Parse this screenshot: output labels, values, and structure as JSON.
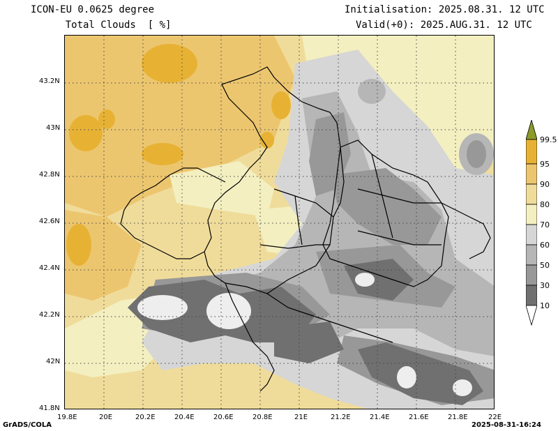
{
  "header": {
    "model_line": "ICON-EU 0.0625 degree",
    "variable_line": "    Total Clouds  [ %]",
    "init_line": "Initialisation: 2025.08.31. 12 UTC",
    "valid_line": "Valid(+0): 2025.AUG.31. 12 UTC"
  },
  "axes": {
    "y_labels": [
      "43.2N",
      "43N",
      "42.8N",
      "42.6N",
      "42.4N",
      "42.2N",
      "42N",
      "41.8N"
    ],
    "x_labels": [
      "19.8E",
      "20E",
      "20.2E",
      "20.4E",
      "20.6E",
      "20.8E",
      "21E",
      "21.2E",
      "21.4E",
      "21.6E",
      "21.8E",
      "22E"
    ]
  },
  "colorbar": {
    "levels": [
      "99.5",
      "95",
      "90",
      "80",
      "70",
      "60",
      "50",
      "30",
      "10"
    ],
    "colors": {
      "above": "#8c9a2c",
      "95_99.5": "#e7b234",
      "90_95": "#ecc66f",
      "80_90": "#f0dc9a",
      "70_80": "#f3efc0",
      "60_70": "#d6d6d6",
      "50_60": "#b6b6b6",
      "30_50": "#989898",
      "10_30": "#707070",
      "below": "#ffffff"
    }
  },
  "footer": {
    "left": "GrADS/COLA",
    "right": "2025-08-31-16:24"
  }
}
